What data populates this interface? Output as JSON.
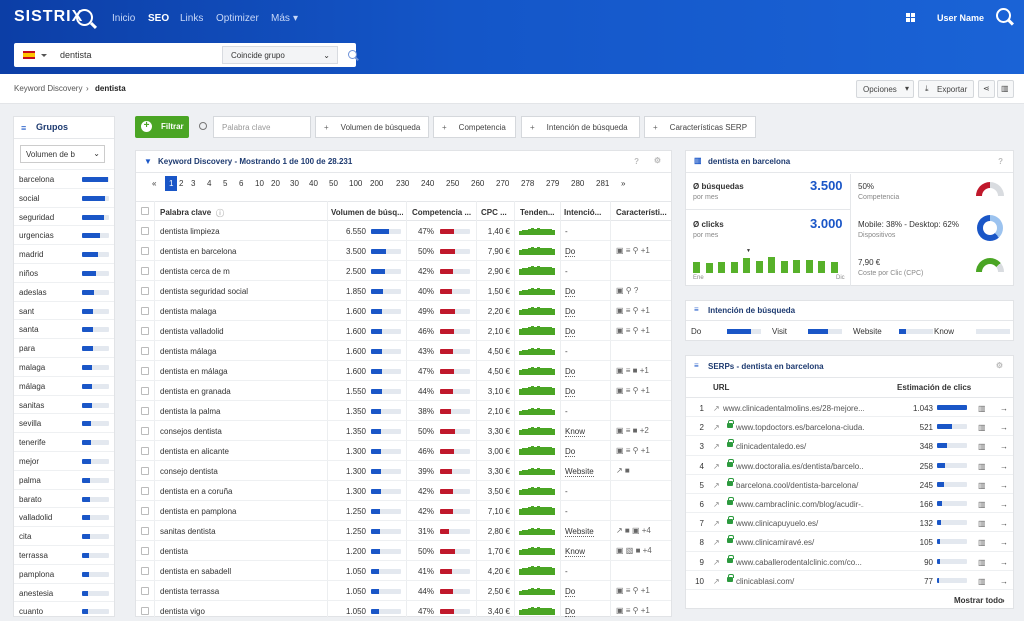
{
  "header": {
    "logo": "SISTRIX",
    "nav": [
      "Inicio",
      "SEO",
      "Links",
      "Optimizer",
      "Más"
    ],
    "nav_active": "SEO",
    "more_caret": "▾",
    "user": "User Name"
  },
  "search": {
    "value": "dentista",
    "match": "Coincide grupo"
  },
  "breadcrumb": {
    "root": "Keyword Discovery",
    "sep": "›",
    "current": "dentista"
  },
  "toolbar": {
    "options": "Opciones",
    "export": "Exportar"
  },
  "groups": {
    "title": "Grupos",
    "select": "Volumen de b",
    "items": [
      {
        "label": "barcelona",
        "level": 0.95
      },
      {
        "label": "social",
        "level": 0.85
      },
      {
        "label": "seguridad",
        "level": 0.8
      },
      {
        "label": "urgencias",
        "level": 0.65
      },
      {
        "label": "madrid",
        "level": 0.6
      },
      {
        "label": "niños",
        "level": 0.5
      },
      {
        "label": "adeslas",
        "level": 0.45
      },
      {
        "label": "sant",
        "level": 0.42
      },
      {
        "label": "santa",
        "level": 0.42
      },
      {
        "label": "para",
        "level": 0.4
      },
      {
        "label": "malaga",
        "level": 0.38
      },
      {
        "label": "málaga",
        "level": 0.38
      },
      {
        "label": "sanitas",
        "level": 0.36
      },
      {
        "label": "sevilla",
        "level": 0.35
      },
      {
        "label": "tenerife",
        "level": 0.34
      },
      {
        "label": "mejor",
        "level": 0.33
      },
      {
        "label": "palma",
        "level": 0.3
      },
      {
        "label": "barato",
        "level": 0.3
      },
      {
        "label": "valladolid",
        "level": 0.28
      },
      {
        "label": "cita",
        "level": 0.28
      },
      {
        "label": "terrassa",
        "level": 0.27
      },
      {
        "label": "pamplona",
        "level": 0.25
      },
      {
        "label": "anestesia",
        "level": 0.24
      },
      {
        "label": "cuanto",
        "level": 0.22
      }
    ]
  },
  "filters": {
    "filter_btn": "Filtrar",
    "keyword_placeholder": "Palabra clave",
    "chips": [
      "Volumen de búsqueda",
      "Competencia",
      "Intención de búsqueda",
      "Características SERP"
    ]
  },
  "table": {
    "title": "Keyword Discovery - Mostrando 1 de 100 de 28.231",
    "pages": [
      "«",
      "1",
      "2",
      "3",
      "4",
      "5",
      "6",
      "10",
      "20",
      "30",
      "40",
      "50",
      "100",
      "200",
      "230",
      "240",
      "250",
      "260",
      "270",
      "278",
      "279",
      "280",
      "281",
      "»"
    ],
    "current_page": "1",
    "headers": [
      "Palabra clave",
      "Volumen de búsq...",
      "Competencia ...",
      "CPC ...",
      "Tenden...",
      "Intenció...",
      "Característi..."
    ],
    "rows": [
      {
        "kw": "dentista limpieza",
        "vol": "6.550",
        "volf": 0.6,
        "comp": "47%",
        "compf": 0.47,
        "cpc": "1,40 €",
        "int": "-",
        "feat": ""
      },
      {
        "kw": "dentista en barcelona",
        "vol": "3.500",
        "volf": 0.5,
        "comp": "50%",
        "compf": 0.5,
        "cpc": "7,90 €",
        "int": "Do",
        "feat": "▣ ≡ ⚲ +1"
      },
      {
        "kw": "dentista cerca de m",
        "vol": "2.500",
        "volf": 0.45,
        "comp": "42%",
        "compf": 0.42,
        "cpc": "2,90 €",
        "int": "-",
        "feat": ""
      },
      {
        "kw": "dentista seguridad social",
        "vol": "1.850",
        "volf": 0.4,
        "comp": "40%",
        "compf": 0.4,
        "cpc": "1,50 €",
        "int": "Do",
        "feat": "▣ ⚲ ?"
      },
      {
        "kw": "dentista malaga",
        "vol": "1.600",
        "volf": 0.38,
        "comp": "49%",
        "compf": 0.49,
        "cpc": "2,20 €",
        "int": "Do",
        "feat": "▣ ≡ ⚲ +1"
      },
      {
        "kw": "dentista valladolid",
        "vol": "1.600",
        "volf": 0.38,
        "comp": "46%",
        "compf": 0.46,
        "cpc": "2,10 €",
        "int": "Do",
        "feat": "▣ ≡ ⚲ +1"
      },
      {
        "kw": "dentista málaga",
        "vol": "1.600",
        "volf": 0.38,
        "comp": "43%",
        "compf": 0.43,
        "cpc": "4,50 €",
        "int": "-",
        "feat": ""
      },
      {
        "kw": "dentista en málaga",
        "vol": "1.600",
        "volf": 0.38,
        "comp": "47%",
        "compf": 0.47,
        "cpc": "4,50 €",
        "int": "Do",
        "feat": "▣ ≡ ■ +1"
      },
      {
        "kw": "dentista en granada",
        "vol": "1.550",
        "volf": 0.37,
        "comp": "44%",
        "compf": 0.44,
        "cpc": "3,10 €",
        "int": "Do",
        "feat": "▣ ≡ ⚲ +1"
      },
      {
        "kw": "dentista la palma",
        "vol": "1.350",
        "volf": 0.33,
        "comp": "38%",
        "compf": 0.38,
        "cpc": "2,10 €",
        "int": "-",
        "feat": ""
      },
      {
        "kw": "consejos dentista",
        "vol": "1.350",
        "volf": 0.33,
        "comp": "50%",
        "compf": 0.5,
        "cpc": "3,30 €",
        "int": "Know",
        "feat": "▣ ≡ ■ +2"
      },
      {
        "kw": "dentista en alicante",
        "vol": "1.300",
        "volf": 0.32,
        "comp": "46%",
        "compf": 0.46,
        "cpc": "3,00 €",
        "int": "Do",
        "feat": "▣ ≡ ⚲ +1"
      },
      {
        "kw": "consejo dentista",
        "vol": "1.300",
        "volf": 0.32,
        "comp": "39%",
        "compf": 0.39,
        "cpc": "3,30 €",
        "int": "Website",
        "feat": "↗ ■"
      },
      {
        "kw": "dentista en a coruña",
        "vol": "1.300",
        "volf": 0.32,
        "comp": "42%",
        "compf": 0.42,
        "cpc": "3,50 €",
        "int": "-",
        "feat": ""
      },
      {
        "kw": "dentista en pamplona",
        "vol": "1.250",
        "volf": 0.31,
        "comp": "42%",
        "compf": 0.42,
        "cpc": "7,10 €",
        "int": "-",
        "feat": ""
      },
      {
        "kw": "sanitas dentista",
        "vol": "1.250",
        "volf": 0.31,
        "comp": "31%",
        "compf": 0.31,
        "cpc": "2,80 €",
        "int": "Website",
        "feat": "↗ ■ ▣ +4"
      },
      {
        "kw": "dentista",
        "vol": "1.200",
        "volf": 0.3,
        "comp": "50%",
        "compf": 0.5,
        "cpc": "1,70 €",
        "int": "Know",
        "feat": "▣ ▧ ■ +4"
      },
      {
        "kw": "dentista en sabadell",
        "vol": "1.050",
        "volf": 0.28,
        "comp": "41%",
        "compf": 0.41,
        "cpc": "4,20 €",
        "int": "-",
        "feat": ""
      },
      {
        "kw": "dentista terrassa",
        "vol": "1.050",
        "volf": 0.28,
        "comp": "44%",
        "compf": 0.44,
        "cpc": "2,50 €",
        "int": "Do",
        "feat": "▣ ≡ ⚲ +1"
      },
      {
        "kw": "dentista vigo",
        "vol": "1.050",
        "volf": 0.28,
        "comp": "47%",
        "compf": 0.47,
        "cpc": "3,40 €",
        "int": "Do",
        "feat": "▣ ≡ ⚲ +1"
      }
    ]
  },
  "summary": {
    "title": "dentista en barcelona",
    "searches_label": "Ø búsquedas",
    "searches_value": "3.500",
    "per_month": "por mes",
    "clicks_label": "Ø clicks",
    "clicks_value": "3.000",
    "month_start": "Ene",
    "month_end": "Dic",
    "months": [
      0.5,
      0.45,
      0.48,
      0.5,
      0.7,
      0.55,
      0.75,
      0.55,
      0.6,
      0.58,
      0.55,
      0.5
    ],
    "competition_value": "50%",
    "competition_label": "Competencia",
    "devices_value": "Mobile: 38% - Desktop: 62%",
    "devices_label": "Dispositivos",
    "cpc_value": "7,90 €",
    "cpc_label": "Coste por Clic (CPC)"
  },
  "intent": {
    "title": "Intención de búsqueda",
    "items": [
      {
        "label": "Do",
        "level": 0.7
      },
      {
        "label": "Visit",
        "level": 0.6
      },
      {
        "label": "Website",
        "level": 0.2
      },
      {
        "label": "Know",
        "level": 0
      }
    ]
  },
  "serps": {
    "title": "SERPs - dentista en barcelona",
    "col_url": "URL",
    "col_clicks": "Estimación de clics",
    "more": "Mostrar todo",
    "rows": [
      {
        "n": "1",
        "url": "www.clinicadentalmolins.es/28-mejore...",
        "clicks": "1.043",
        "level": 1,
        "lock": false
      },
      {
        "n": "2",
        "url": "www.topdoctors.es/barcelona-ciuda...",
        "clicks": "521",
        "level": 0.5,
        "lock": true
      },
      {
        "n": "3",
        "url": "clinicadentaledo.es/",
        "clicks": "348",
        "level": 0.33,
        "lock": true
      },
      {
        "n": "4",
        "url": "www.doctoralia.es/dentista/barcelo...",
        "clicks": "258",
        "level": 0.25,
        "lock": true
      },
      {
        "n": "5",
        "url": "barcelona.cool/dentista-barcelona/",
        "clicks": "245",
        "level": 0.24,
        "lock": true
      },
      {
        "n": "6",
        "url": "www.cambraclinic.com/blog/acudir-...",
        "clicks": "166",
        "level": 0.16,
        "lock": true
      },
      {
        "n": "7",
        "url": "www.clinicapuyuelo.es/",
        "clicks": "132",
        "level": 0.13,
        "lock": true
      },
      {
        "n": "8",
        "url": "www.clinicamiravé.es/",
        "clicks": "105",
        "level": 0.1,
        "lock": true
      },
      {
        "n": "9",
        "url": "www.caballerodentalclinic.com/co...",
        "clicks": "90",
        "level": 0.09,
        "lock": true
      },
      {
        "n": "10",
        "url": "clinicablasi.com/",
        "clicks": "77",
        "level": 0.07,
        "lock": true
      }
    ]
  },
  "colors": {
    "brand": "#1a56c7",
    "green": "#4aa524",
    "red": "#c0182b"
  }
}
